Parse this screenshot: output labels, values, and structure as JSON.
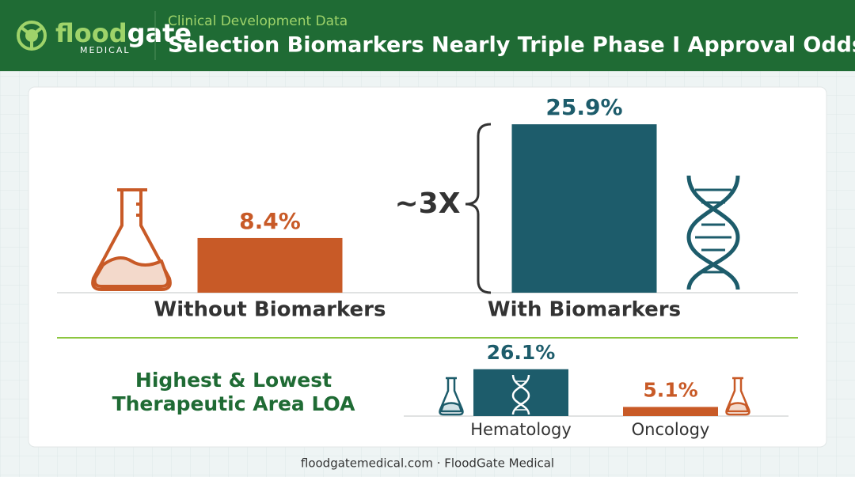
{
  "header": {
    "logo": {
      "part1": "flood",
      "part2": "gate",
      "tagline": "MEDICAL"
    },
    "subtitle": "Clinical Development Data",
    "title": "Selection Biomarkers Nearly Triple Phase I Approval Odds"
  },
  "chart_data": [
    {
      "type": "bar",
      "categories": [
        "Without Biomarkers",
        "With Biomarkers"
      ],
      "values": [
        8.4,
        25.9
      ],
      "value_labels": [
        "8.4%",
        "25.9%"
      ],
      "colors": [
        "#c85a27",
        "#1d5c6b"
      ],
      "annotation": "~3X"
    },
    {
      "type": "bar",
      "title": [
        "Highest & Lowest",
        "Therapeutic Area LOA"
      ],
      "categories": [
        "Hematology",
        "Oncology"
      ],
      "values": [
        26.1,
        5.1
      ],
      "value_labels": [
        "26.1%",
        "5.1%"
      ],
      "colors": [
        "#1d5c6b",
        "#c85a27"
      ]
    }
  ],
  "footer": "floodgatemedical.com · FloodGate Medical"
}
